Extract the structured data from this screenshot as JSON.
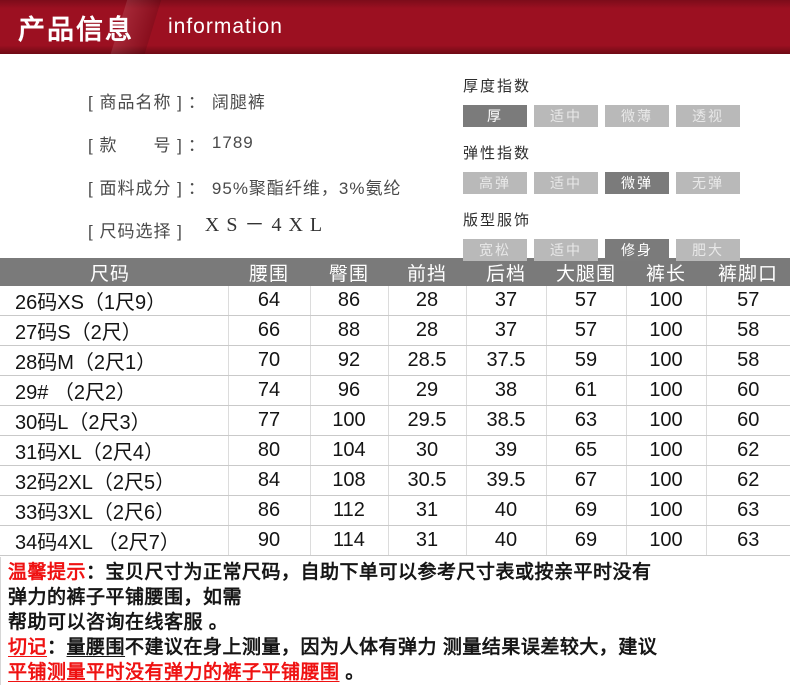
{
  "banner": {
    "title": "产品信息",
    "subtitle": "information"
  },
  "product": {
    "fields": [
      {
        "key": "product-name",
        "label": "[ 商品名称 ]",
        "sep": "：",
        "value": "阔腿裤",
        "serif": false
      },
      {
        "key": "style-number",
        "label": "[ 款　　号 ]",
        "sep": "：",
        "value": "1789",
        "serif": false
      },
      {
        "key": "fabric-composition",
        "label": "[ 面料成分 ]",
        "sep": "：",
        "value": "95%聚酯纤维，3%氨纶",
        "serif": false
      },
      {
        "key": "size-range",
        "label": "[ 尺码选择 ]",
        "sep": "",
        "value": "XS－4XL",
        "serif": true
      }
    ]
  },
  "indices": [
    {
      "title": "厚度指数",
      "options": [
        {
          "label": "厚",
          "selected": true
        },
        {
          "label": "适中",
          "selected": false
        },
        {
          "label": "微薄",
          "selected": false
        },
        {
          "label": "透视",
          "selected": false
        }
      ]
    },
    {
      "title": "弹性指数",
      "options": [
        {
          "label": "高弹",
          "selected": false
        },
        {
          "label": "适中",
          "selected": false
        },
        {
          "label": "微弹",
          "selected": true
        },
        {
          "label": "无弹",
          "selected": false
        }
      ]
    },
    {
      "title": "版型服饰",
      "options": [
        {
          "label": "宽松",
          "selected": false
        },
        {
          "label": "适中",
          "selected": false
        },
        {
          "label": "修身",
          "selected": true
        },
        {
          "label": "肥大",
          "selected": false
        }
      ]
    }
  ],
  "size_table": {
    "headers": [
      "尺码",
      "腰围",
      "臀围",
      "前挡",
      "后档",
      "大腿围",
      "裤长",
      "裤脚口"
    ],
    "rows": [
      [
        "26码XS（1尺9）",
        "64",
        "86",
        "28",
        "37",
        "57",
        "100",
        "57"
      ],
      [
        "27码S（2尺）",
        "66",
        "88",
        "28",
        "37",
        "57",
        "100",
        "58"
      ],
      [
        "28码M（2尺1）",
        "70",
        "92",
        "28.5",
        "37.5",
        "59",
        "100",
        "58"
      ],
      [
        "29# （2尺2）",
        "74",
        "96",
        "29",
        "38",
        "61",
        "100",
        "60"
      ],
      [
        "30码L（2尺3）",
        "77",
        "100",
        "29.5",
        "38.5",
        "63",
        "100",
        "60"
      ],
      [
        "31码XL（2尺4）",
        "80",
        "104",
        "30",
        "39",
        "65",
        "100",
        "62"
      ],
      [
        "32码2XL（2尺5）",
        "84",
        "108",
        "30.5",
        "39.5",
        "67",
        "100",
        "62"
      ],
      [
        "33码3XL（2尺6）",
        "86",
        "112",
        "31",
        "40",
        "69",
        "100",
        "63"
      ],
      [
        "34码4XL （2尺7）",
        "90",
        "114",
        "31",
        "40",
        "69",
        "100",
        "63"
      ]
    ]
  },
  "notes": {
    "tip": {
      "label": "温馨提示",
      "line1_rest": "：宝贝尺寸为正常尺码，自助下单可以参考尺寸表或按亲平时没有",
      "line2": "弹力的裤子平铺腰围，如需",
      "line3": "帮助可以咨询在线客服 。"
    },
    "warning": {
      "label": "切记",
      "colon": "：",
      "underlined_text": "量腰围",
      "rest": "不建议在身上测量，因为人体有弹力 测量结果误差较大，建议",
      "red_line": "平铺测量平时没有弹力的裤子平铺腰围",
      "tail": " 。"
    }
  },
  "colors": {
    "banner_red": "#9c1021",
    "note_red": "#ef1212",
    "header_gray": "#7a7a7a",
    "option_selected": "#7b7b7b",
    "option_unselected": "#b9b9b9"
  }
}
